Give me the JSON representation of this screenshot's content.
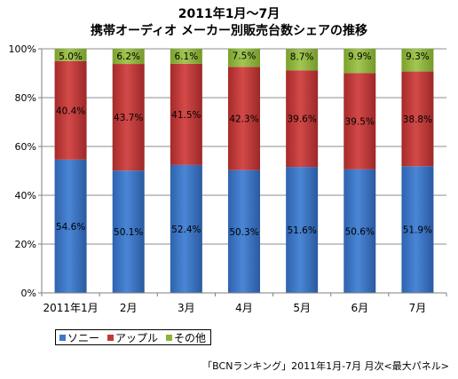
{
  "chart_data": {
    "type": "bar",
    "stacked": true,
    "title": "2011年1月～7月",
    "subtitle": "携帯オーディオ メーカー別販売台数シェアの推移",
    "categories": [
      "2011年1月",
      "2月",
      "3月",
      "4月",
      "5月",
      "6月",
      "7月"
    ],
    "series": [
      {
        "name": "ソニー",
        "color": "#3c78c8",
        "values": [
          54.6,
          50.1,
          52.4,
          50.3,
          51.6,
          50.6,
          51.9
        ],
        "labels": [
          "54.6%",
          "50.1%",
          "52.4%",
          "50.3%",
          "51.6%",
          "50.6%",
          "51.9%"
        ]
      },
      {
        "name": "アップル",
        "color": "#c0393a",
        "values": [
          40.4,
          43.7,
          41.5,
          42.3,
          39.6,
          39.5,
          38.8
        ],
        "labels": [
          "40.4%",
          "43.7%",
          "41.5%",
          "42.3%",
          "39.6%",
          "39.5%",
          "38.8%"
        ]
      },
      {
        "name": "その他",
        "color": "#8db33a",
        "values": [
          5.0,
          6.2,
          6.1,
          7.5,
          8.7,
          9.9,
          9.3
        ],
        "labels": [
          "5.0%",
          "6.2%",
          "6.1%",
          "7.5%",
          "8.7%",
          "9.9%",
          "9.3%"
        ]
      }
    ],
    "yticks": [
      "0%",
      "20%",
      "40%",
      "60%",
      "80%",
      "100%"
    ],
    "ylim": [
      0,
      100
    ],
    "grid": true,
    "legend": "bottom-left"
  },
  "source": "「BCNランキング」2011年1月-7月 月次<最大パネル>"
}
